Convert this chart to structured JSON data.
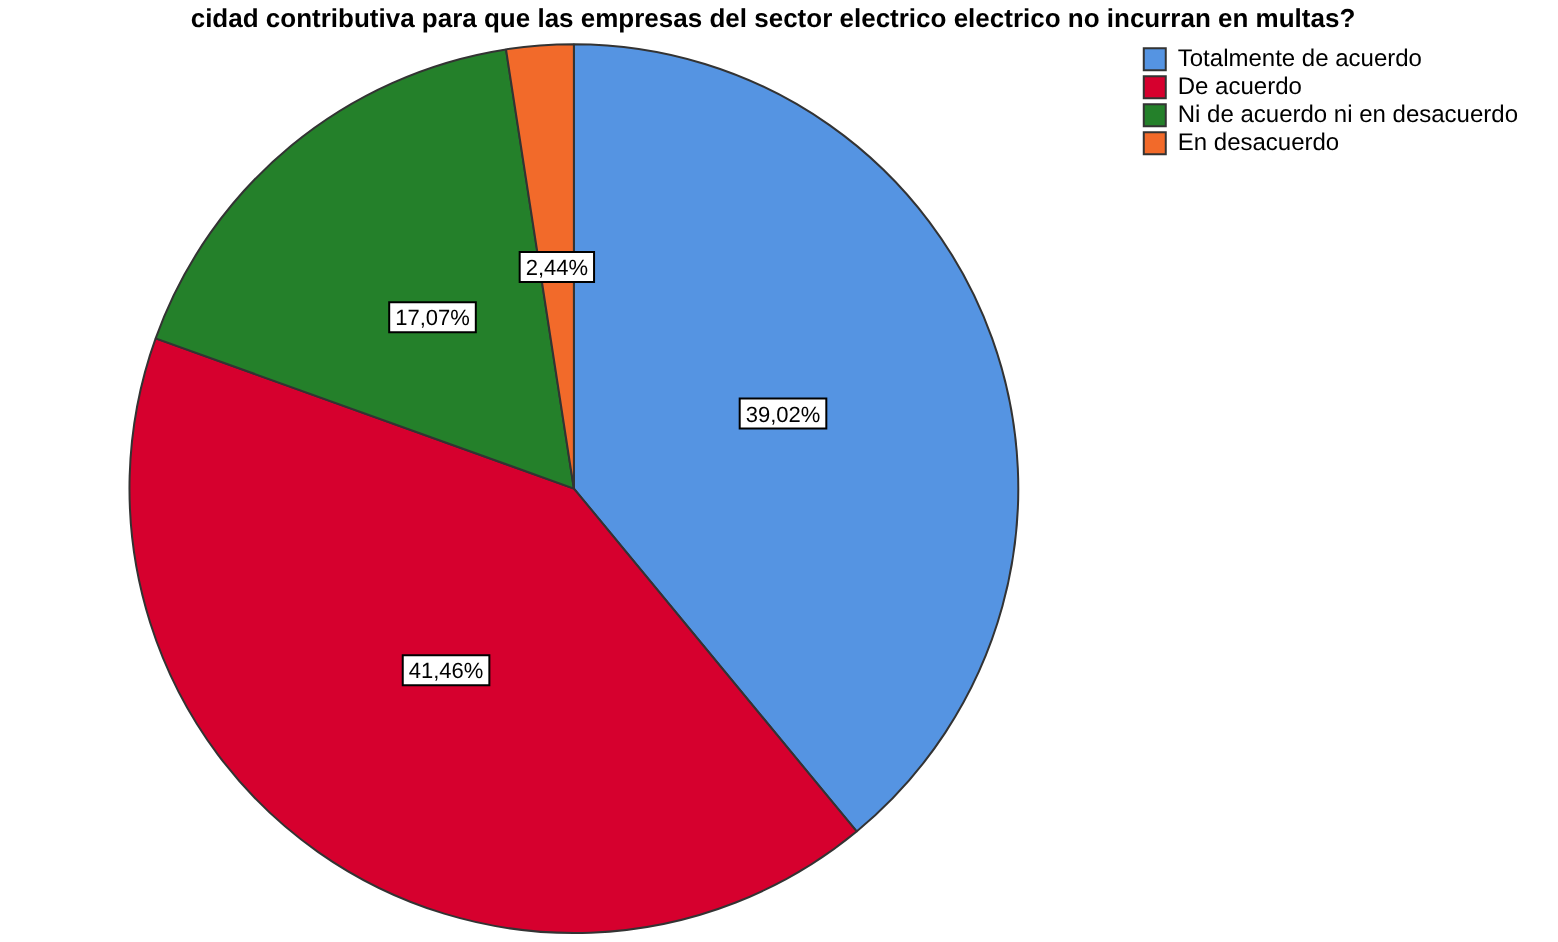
{
  "chart_data": {
    "type": "pie",
    "title": "cidad contributiva para que las empresas del sector electrico electrico no incurran en multas?",
    "categories": [
      "Totalmente de acuerdo",
      "De acuerdo",
      "Ni de acuerdo ni en desacuerdo",
      "En desacuerdo"
    ],
    "values": [
      39.02,
      41.46,
      17.07,
      2.44
    ],
    "colors": [
      "#5594e2",
      "#d6002e",
      "#24802a",
      "#f26a2a"
    ],
    "value_labels": [
      "39,02%",
      "41,46%",
      "17,07%",
      "2,44%"
    ],
    "legend": "top right"
  }
}
